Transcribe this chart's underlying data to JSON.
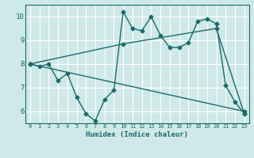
{
  "background_color": "#cfe8e8",
  "grid_color": "#b0d8d8",
  "line_color": "#1a6b6b",
  "xlabel": "Humidex (Indice chaleur)",
  "ylim": [
    5.5,
    10.5
  ],
  "xlim": [
    -0.5,
    23.5
  ],
  "yticks": [
    6,
    7,
    8,
    9,
    10
  ],
  "xticks": [
    0,
    1,
    2,
    3,
    4,
    5,
    6,
    7,
    8,
    9,
    10,
    11,
    12,
    13,
    14,
    15,
    16,
    17,
    18,
    19,
    20,
    21,
    22,
    23
  ],
  "line1_x": [
    0,
    1,
    2,
    3,
    4,
    5,
    6,
    7,
    8,
    9,
    10,
    11,
    12,
    13,
    14,
    15,
    16,
    17,
    18,
    19,
    20,
    21,
    22,
    23
  ],
  "line1_y": [
    8.0,
    7.9,
    8.0,
    7.3,
    7.6,
    6.6,
    5.9,
    5.6,
    6.5,
    6.9,
    10.2,
    9.5,
    9.4,
    10.0,
    9.2,
    8.7,
    8.7,
    8.9,
    9.8,
    9.9,
    9.7,
    7.1,
    6.4,
    5.9
  ],
  "line2_x": [
    0,
    23
  ],
  "line2_y": [
    8.0,
    6.0
  ],
  "line3_x": [
    0,
    10,
    20,
    23
  ],
  "line3_y": [
    8.0,
    8.85,
    9.5,
    5.9
  ],
  "xtick_fontsize": 5.0,
  "ytick_fontsize": 6.5,
  "xlabel_fontsize": 6.5
}
